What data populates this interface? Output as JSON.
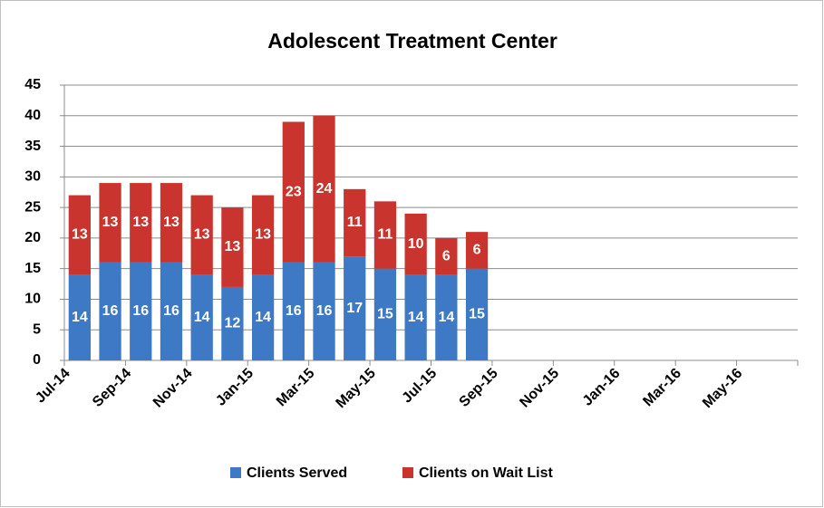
{
  "chart_data": {
    "type": "stacked-bar",
    "title": "Adolescent Treatment Center",
    "categories": [
      "Jul-14",
      null,
      "Sep-14",
      null,
      "Nov-14",
      null,
      "Jan-15",
      null,
      "Mar-15",
      null,
      "May-15",
      null,
      "Jul-15",
      null,
      "Sep-15",
      null,
      "Nov-15",
      null,
      "Jan-16",
      null,
      "Mar-16",
      null,
      "May-16",
      null
    ],
    "series": [
      {
        "name": "Clients Served",
        "color": "#3d79c4",
        "values": [
          14,
          16,
          16,
          16,
          14,
          12,
          14,
          16,
          16,
          17,
          15,
          14,
          14,
          15,
          null,
          null,
          null,
          null,
          null,
          null,
          null,
          null,
          null,
          null
        ]
      },
      {
        "name": "Clients on Wait List",
        "color": "#c9342f",
        "values": [
          13,
          13,
          13,
          13,
          13,
          13,
          13,
          23,
          24,
          11,
          11,
          10,
          6,
          6,
          null,
          null,
          null,
          null,
          null,
          null,
          null,
          null,
          null,
          null
        ]
      }
    ],
    "ylim": [
      0,
      45
    ],
    "yticks": [
      0,
      5,
      10,
      15,
      20,
      25,
      30,
      35,
      40,
      45
    ],
    "grid": true,
    "legend": "bottom",
    "data_labels": true
  }
}
